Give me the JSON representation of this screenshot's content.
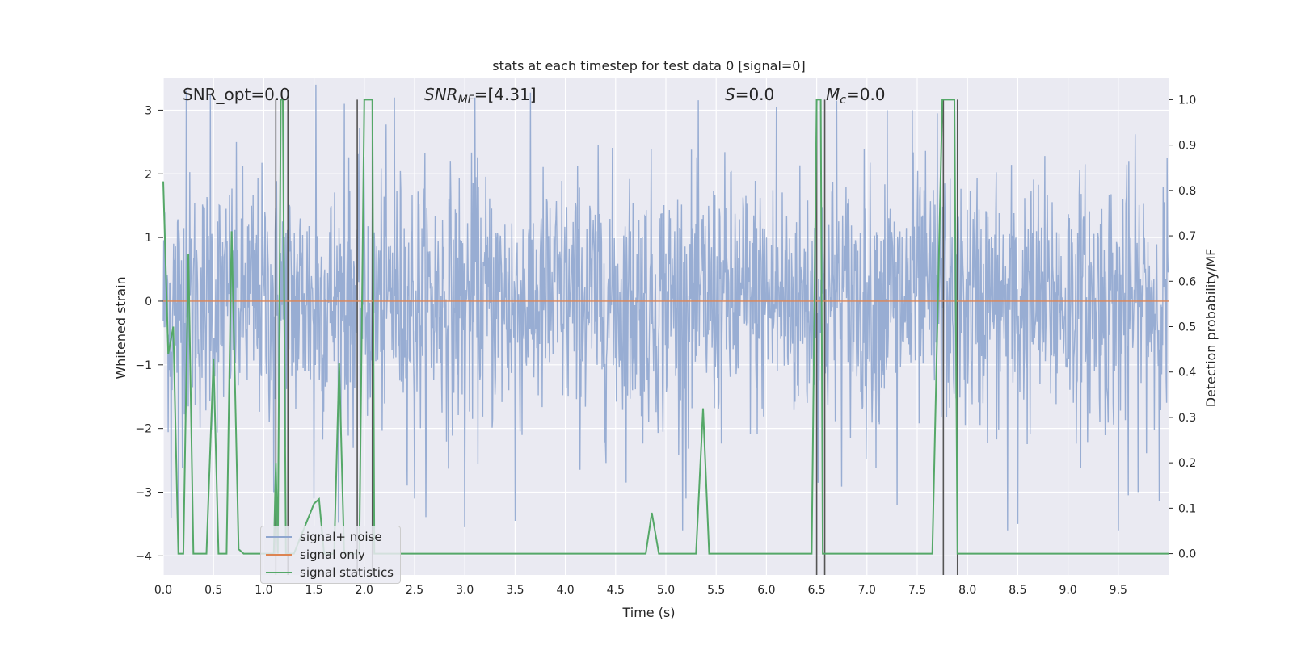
{
  "chart_data": {
    "type": "line",
    "title": "stats at each timestep for test data 0 [signal=0]",
    "xlabel": "Time (s)",
    "ylabel_left": "Whitened strain",
    "ylabel_right": "Detection probability/MF",
    "xlim": [
      0,
      10
    ],
    "ylim_left": [
      -4.3,
      3.5
    ],
    "ylim_right": [
      -0.047,
      1.047
    ],
    "x_ticks": [
      "0.0",
      "0.5",
      "1.0",
      "1.5",
      "2.0",
      "2.5",
      "3.0",
      "3.5",
      "4.0",
      "4.5",
      "5.0",
      "5.5",
      "6.0",
      "6.5",
      "7.0",
      "7.5",
      "8.0",
      "8.5",
      "9.0",
      "9.5"
    ],
    "y_ticks_left": [
      "3",
      "2",
      "1",
      "0",
      "−1",
      "−2",
      "−3",
      "−4"
    ],
    "y_ticks_right": [
      "1.0",
      "0.9",
      "0.8",
      "0.7",
      "0.6",
      "0.5",
      "0.4",
      "0.3",
      "0.2",
      "0.1",
      "0.0"
    ],
    "grid": true,
    "legend_position": "lower-left",
    "annotations": {
      "snr_opt": "SNR_opt=0.0",
      "snr_mf_symbol": "SNR",
      "snr_mf_sub": "MF",
      "snr_mf_value": "=[4.31]",
      "s_symbol": "S",
      "s_value": "=0.0",
      "mc_symbol": "M",
      "mc_sub": "c",
      "mc_value": "=0.0"
    },
    "series": [
      {
        "name": "signal+ noise",
        "color": "#8fa6cf",
        "axis": "left",
        "description_range": [
          -3.6,
          3.4
        ],
        "peaks_high": [
          [
            0.23,
            3.3
          ],
          [
            0.47,
            3.25
          ],
          [
            1.52,
            3.4
          ],
          [
            1.8,
            3.1
          ],
          [
            2.3,
            3.2
          ],
          [
            3.1,
            3.2
          ],
          [
            6.1,
            3.05
          ],
          [
            6.7,
            3.15
          ],
          [
            7.2,
            3.0
          ],
          [
            7.45,
            3.0
          ],
          [
            7.7,
            2.95
          ]
        ],
        "peaks_low": [
          [
            0.08,
            -3.4
          ],
          [
            0.15,
            -3.65
          ],
          [
            1.1,
            -3.0
          ],
          [
            1.5,
            -3.1
          ],
          [
            2.5,
            -3.1
          ],
          [
            3.0,
            -3.55
          ],
          [
            3.5,
            -3.45
          ],
          [
            5.2,
            -3.1
          ],
          [
            7.3,
            -3.2
          ],
          [
            8.4,
            -4.05
          ],
          [
            8.5,
            -3.5
          ],
          [
            9.5,
            -3.6
          ],
          [
            9.6,
            -3.05
          ]
        ]
      },
      {
        "name": "signal only",
        "color": "#dd8452",
        "axis": "left",
        "x": [
          0,
          10
        ],
        "y": [
          0,
          0
        ]
      },
      {
        "name": "signal statistics",
        "color": "#55a868",
        "axis": "right",
        "x": [
          0.0,
          0.05,
          0.1,
          0.15,
          0.18,
          0.2,
          0.25,
          0.3,
          0.32,
          0.43,
          0.5,
          0.55,
          0.6,
          0.63,
          0.68,
          0.75,
          0.8,
          0.85,
          0.9,
          1.1,
          1.12,
          1.14,
          1.17,
          1.19,
          1.22,
          1.25,
          1.3,
          1.5,
          1.55,
          1.6,
          1.65,
          1.7,
          1.75,
          1.8,
          1.85,
          1.9,
          1.95,
          2.0,
          2.05,
          2.08,
          2.1,
          2.13,
          4.7,
          4.8,
          4.86,
          4.93,
          5.0,
          5.3,
          5.37,
          5.43,
          5.5,
          6.45,
          6.5,
          6.54,
          6.56,
          6.6,
          6.65,
          6.75,
          6.8,
          6.85,
          7.5,
          7.58,
          7.65,
          7.75,
          7.8,
          7.87,
          7.9,
          7.93,
          7.95,
          10.0
        ],
        "y": [
          0.82,
          0.44,
          0.5,
          0.0,
          0.0,
          0.0,
          0.66,
          0.0,
          0.0,
          0.0,
          0.43,
          0.0,
          0.0,
          0.0,
          0.71,
          0.01,
          0.0,
          0.0,
          0.0,
          0.0,
          0.2,
          0.0,
          1.0,
          1.0,
          0.0,
          0.0,
          0.0,
          0.11,
          0.12,
          0.0,
          0.0,
          0.0,
          0.42,
          0.0,
          0.0,
          0.0,
          0.0,
          1.0,
          1.0,
          1.0,
          0.0,
          0.0,
          0.0,
          0.0,
          0.09,
          0.0,
          0.0,
          0.0,
          0.32,
          0.0,
          0.0,
          0.0,
          1.0,
          1.0,
          0.0,
          0.0,
          0.0,
          0.0,
          0.0,
          0.0,
          0.0,
          0.0,
          0.0,
          1.0,
          1.0,
          1.0,
          0.0,
          0.0,
          0.0,
          0.0
        ]
      }
    ],
    "vertical_markers": {
      "color": "#555555",
      "x": [
        1.12,
        1.24,
        1.93,
        2.08,
        6.5,
        6.58,
        7.76,
        7.9
      ],
      "ytop_right": 1.0
    }
  }
}
